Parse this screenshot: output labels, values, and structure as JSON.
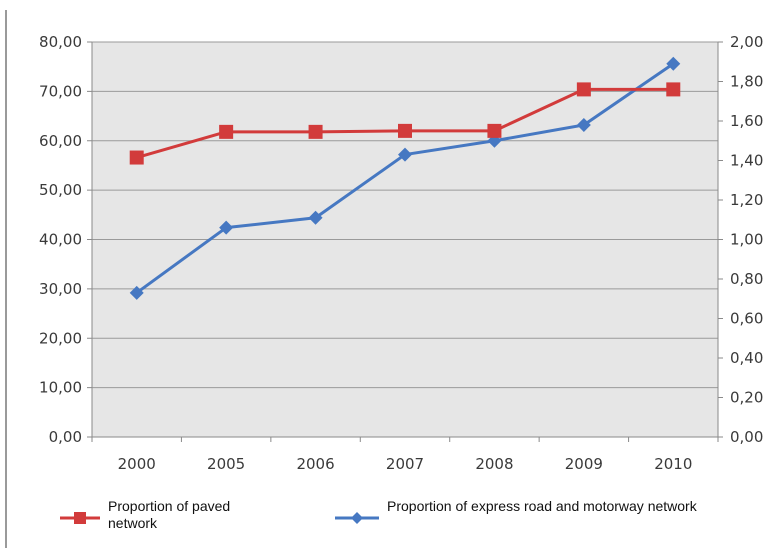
{
  "chart_data": {
    "type": "line",
    "categories": [
      "2000",
      "2005",
      "2006",
      "2007",
      "2008",
      "2009",
      "2010"
    ],
    "y_left": {
      "lim": [
        0,
        80
      ],
      "ticks": [
        "0,00",
        "10,00",
        "20,00",
        "30,00",
        "40,00",
        "50,00",
        "60,00",
        "70,00",
        "80,00"
      ]
    },
    "y_right": {
      "lim": [
        0,
        2
      ],
      "ticks": [
        "0,00",
        "0,20",
        "0,40",
        "0,60",
        "0,80",
        "1,00",
        "1,20",
        "1,40",
        "1,60",
        "1,80",
        "2,00"
      ]
    },
    "series": [
      {
        "name": "Proportion of  paved network",
        "axis": "left",
        "marker": "square",
        "color": "#d23b3b",
        "values": [
          56.6,
          61.8,
          61.8,
          62.0,
          62.0,
          70.4,
          70.4
        ]
      },
      {
        "name": "Proportion of  express road and motorway network",
        "axis": "right",
        "marker": "diamond",
        "color": "#4678c2",
        "values": [
          0.73,
          1.06,
          1.11,
          1.43,
          1.5,
          1.58,
          1.89
        ]
      }
    ],
    "grid": true,
    "legend": "bottom"
  }
}
